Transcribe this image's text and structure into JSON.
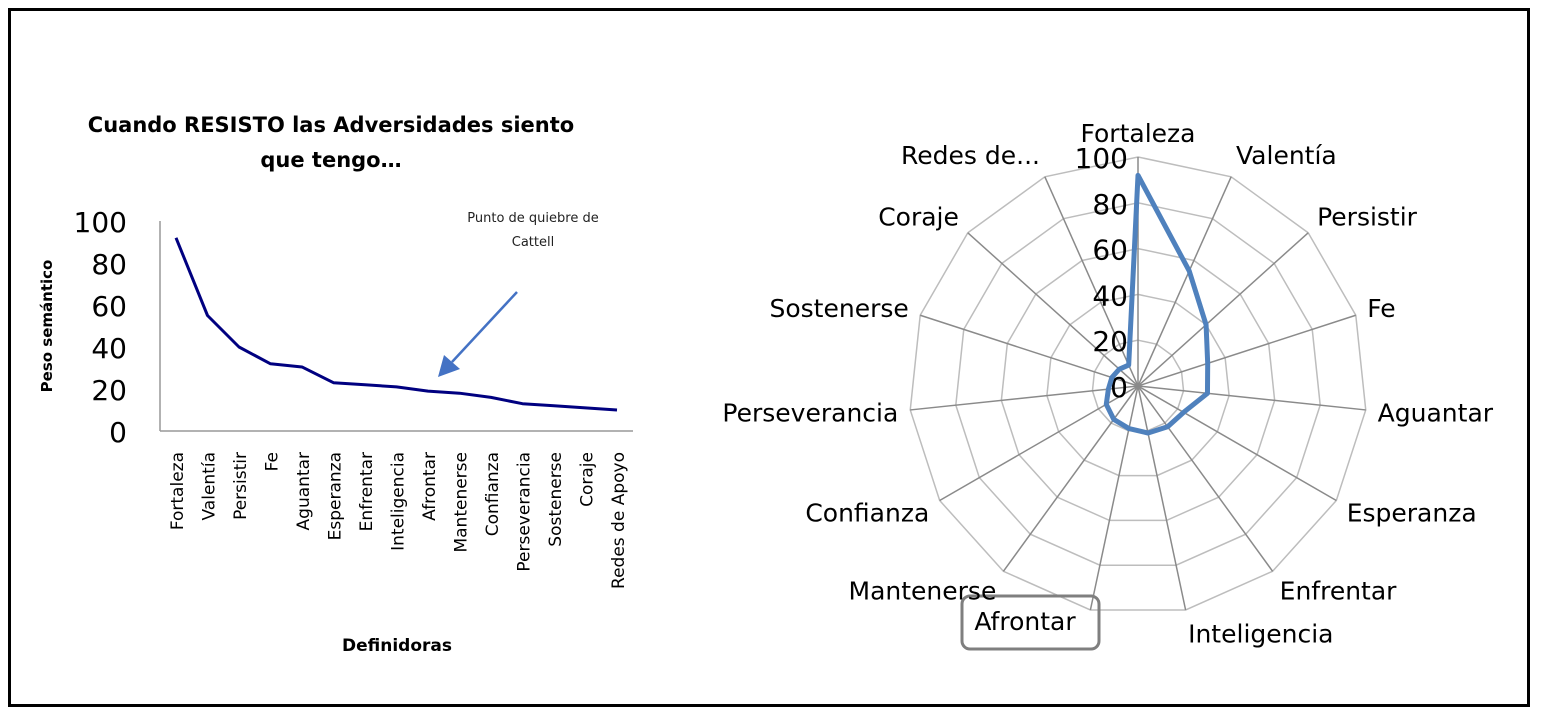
{
  "chart_data": [
    {
      "type": "line",
      "title_line1": "Cuando RESISTO las Adversidades siento",
      "title_line2": "que tengo…",
      "xlabel": "Definidoras",
      "ylabel": "Peso semántico",
      "ylim": [
        0,
        100
      ],
      "yticks": [
        "0",
        "20",
        "40",
        "60",
        "80",
        "100"
      ],
      "categories": [
        "Fortaleza",
        "Valentía",
        "Persistir",
        "Fe",
        "Aguantar",
        "Esperanza",
        "Enfrentar",
        "Inteligencia",
        "Afrontar",
        "Mantenerse",
        "Confianza",
        "Perseverancia",
        "Sostenerse",
        "Coraje",
        "Redes de Apoyo"
      ],
      "values": [
        92,
        55,
        40,
        32,
        30.5,
        23,
        22,
        21,
        19,
        18,
        16,
        13,
        12,
        11,
        10
      ],
      "color": "#000080",
      "annotation_line1": "Punto de quiebre de",
      "annotation_line2": "Cattell",
      "annotation_color": "#4472C4"
    },
    {
      "type": "radar",
      "ylim": [
        0,
        100
      ],
      "rticks": [
        "0",
        "20",
        "40",
        "60",
        "80",
        "100"
      ],
      "categories": [
        "Fortaleza",
        "Valentía",
        "Persistir",
        "Fe",
        "Aguantar",
        "Esperanza",
        "Enfrentar",
        "Inteligencia",
        "Afrontar",
        "Mantenerse",
        "Confianza",
        "Perseverancia",
        "Sostenerse",
        "Coraje",
        "Redes de..."
      ],
      "values": [
        92,
        55,
        40,
        32,
        30.5,
        23,
        22,
        21,
        19,
        18,
        16,
        13,
        12,
        11,
        10
      ],
      "color": "#4F81BD",
      "highlighted_category": "Afrontar"
    }
  ]
}
